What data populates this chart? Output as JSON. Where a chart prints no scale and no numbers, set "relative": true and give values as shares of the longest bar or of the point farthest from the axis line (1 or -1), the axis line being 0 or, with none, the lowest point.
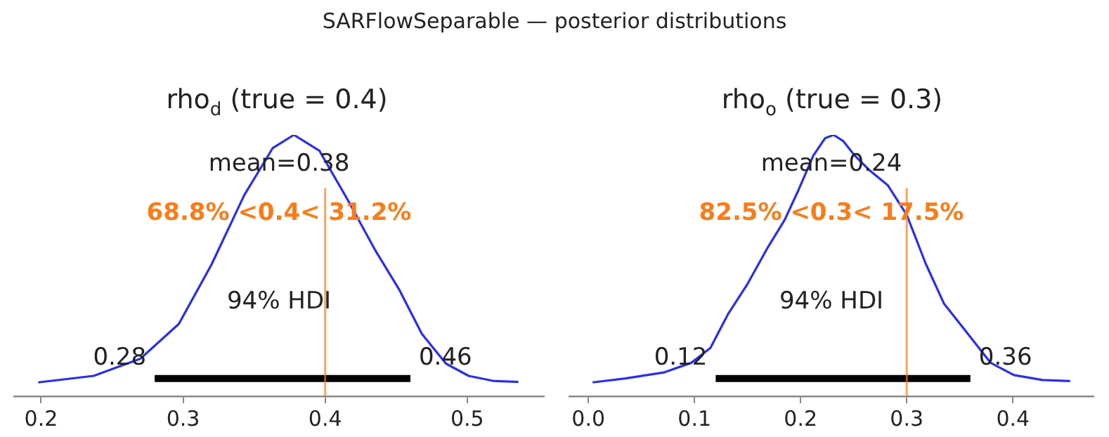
{
  "chart_data": [
    {
      "type": "line",
      "title": "rho$_{d}$ (true = 0.4)",
      "relative": true,
      "tick_labels": "x",
      "grid": false,
      "legend": false,
      "annotations": [
        "SARFlowSeparable — posterior distributions",
        "mean=0.38",
        "94% HDI",
        {
          "text": "0.28",
          "x": 0.28,
          "y": 0.068
        },
        {
          "text": "0.46",
          "x": 0.46,
          "y": 0.068
        }
      ],
      "xlim": [
        0.181,
        0.554
      ],
      "xticks": [
        0.2,
        0.3,
        0.4,
        0.5
      ],
      "ref_lines": [
        {
          "axis": "x",
          "value": 0.4,
          "label": "68.8% <0.4< 31.2%",
          "color": "#fa7c17"
        }
      ],
      "series": [
        {
          "color": "#2a2eec",
          "x": [
            0.198,
            0.237,
            0.27,
            0.297,
            0.32,
            0.343,
            0.363,
            0.378,
            0.396,
            0.416,
            0.435,
            0.452,
            0.468,
            0.485,
            0.501,
            0.518,
            0.536
          ],
          "values": [
            0.053,
            0.078,
            0.144,
            0.277,
            0.504,
            0.769,
            0.949,
            1,
            0.939,
            0.75,
            0.561,
            0.409,
            0.239,
            0.125,
            0.078,
            0.059,
            0.055
          ]
        },
        {
          "color": "#000000",
          "x": [
            0.28,
            0.46
          ],
          "values": [
            0.068,
            0.068
          ]
        }
      ]
    },
    {
      "type": "line",
      "title": "rho$_{o}$ (true = 0.3)",
      "relative": true,
      "tick_labels": "x",
      "grid": false,
      "legend": false,
      "annotations": [
        "mean=0.24",
        "94% HDI",
        {
          "text": "0.12",
          "x": 0.12,
          "y": 0.068
        },
        {
          "text": "0.36",
          "x": 0.36,
          "y": 0.068
        }
      ],
      "xlim": [
        -0.018,
        0.476
      ],
      "xticks": [
        {
          "value": 0,
          "label": "0.0"
        },
        0.1,
        0.2,
        0.3,
        0.4
      ],
      "ref_lines": [
        {
          "axis": "x",
          "value": 0.3,
          "label": "82.5% <0.3< 17.5%",
          "color": "#fa7c17"
        }
      ],
      "series": [
        {
          "color": "#2a2eec",
          "x": [
            0.004,
            0.035,
            0.071,
            0.097,
            0.115,
            0.132,
            0.15,
            0.168,
            0.185,
            0.198,
            0.212,
            0.223,
            0.231,
            0.24,
            0.251,
            0.265,
            0.282,
            0.3,
            0.318,
            0.335,
            0.357,
            0.379,
            0.401,
            0.428,
            0.454
          ],
          "values": [
            0.053,
            0.068,
            0.091,
            0.128,
            0.185,
            0.317,
            0.43,
            0.562,
            0.675,
            0.789,
            0.921,
            0.987,
            1,
            0.977,
            0.921,
            0.864,
            0.808,
            0.694,
            0.506,
            0.355,
            0.242,
            0.128,
            0.081,
            0.062,
            0.058
          ]
        },
        {
          "color": "#000000",
          "x": [
            0.12,
            0.36
          ],
          "values": [
            0.068,
            0.068
          ]
        }
      ]
    }
  ]
}
